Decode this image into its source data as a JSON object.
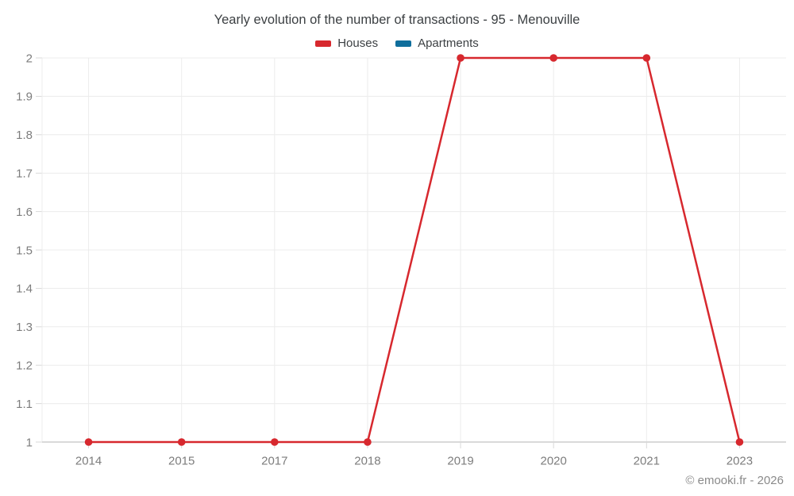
{
  "chart": {
    "title": "Yearly evolution of the number of transactions - 95 - Menouville",
    "footer": "© emooki.fr - 2026"
  },
  "chart_data": {
    "type": "line",
    "title": "Yearly evolution of the number of transactions - 95 - Menouville",
    "categories": [
      "2014",
      "2015",
      "2017",
      "2018",
      "2019",
      "2020",
      "2021",
      "2023"
    ],
    "series": [
      {
        "name": "Houses",
        "color": "#d7282e",
        "values": [
          1,
          1,
          1,
          1,
          2,
          2,
          2,
          1
        ]
      },
      {
        "name": "Apartments",
        "color": "#0f6e9c",
        "values": []
      }
    ],
    "xlabel": "",
    "ylabel": "",
    "ylim": [
      1,
      2
    ],
    "yticks": [
      1,
      1.1,
      1.2,
      1.3,
      1.4,
      1.5,
      1.6,
      1.7,
      1.8,
      1.9,
      2
    ],
    "ytick_labels": [
      "1",
      "1.1",
      "1.2",
      "1.3",
      "1.4",
      "1.5",
      "1.6",
      "1.7",
      "1.8",
      "1.9",
      "2"
    ],
    "grid": true,
    "legend_position": "top",
    "marker": "circle",
    "annotations": []
  },
  "colors": {
    "houses": "#d7282e",
    "apartments": "#0f6e9c",
    "gridline": "#ececec",
    "tick": "#d9d9d9",
    "axis_line": "#d9d9d9",
    "tick_label": "#7d7d7d",
    "title_text": "#3c4043",
    "footer_text": "#8a8a8a"
  }
}
